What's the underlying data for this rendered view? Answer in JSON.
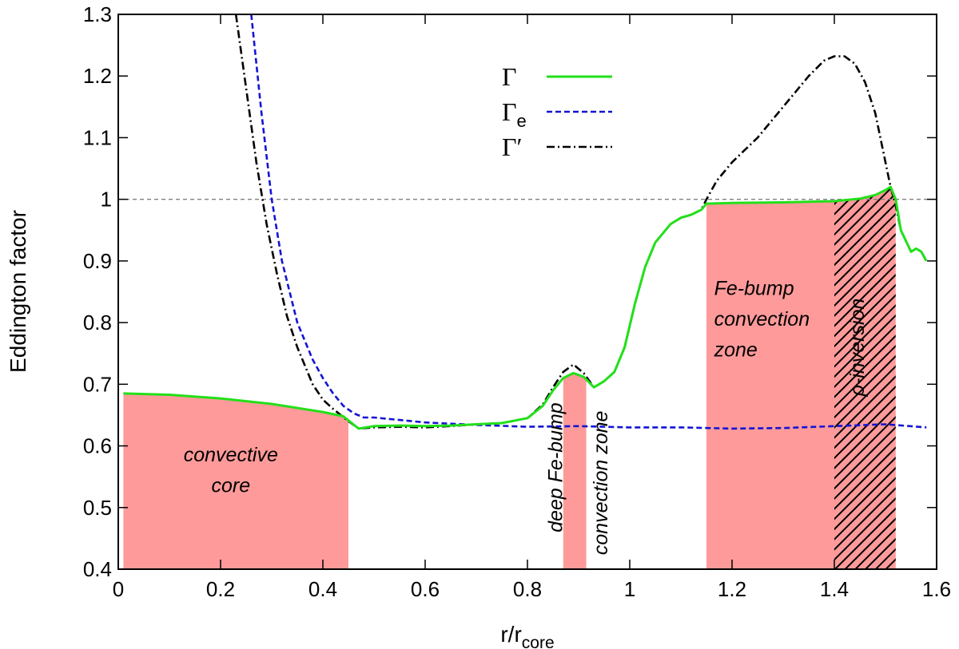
{
  "chart_data": {
    "type": "line",
    "xlabel": {
      "main": "r/r",
      "sub": "core"
    },
    "ylabel": "Eddington factor",
    "xlim": [
      0,
      1.6
    ],
    "ylim": [
      0.4,
      1.3
    ],
    "xticks": [
      "0",
      "0.2",
      "0.4",
      "0.6",
      "0.8",
      "1",
      "1.2",
      "1.4",
      "1.6"
    ],
    "yticks": [
      "0.4",
      "0.5",
      "0.6",
      "0.7",
      "0.8",
      "0.9",
      "1",
      "1.1",
      "1.2",
      "1.3"
    ],
    "reference_line": {
      "y": 1.0,
      "style": "dashed",
      "color": "#808080"
    },
    "legend": {
      "position": "top-center"
    },
    "series": [
      {
        "name": "Γ",
        "legend": {
          "main": "Γ",
          "sub": ""
        },
        "color": "#22e01a",
        "dash": "solid",
        "x": [
          0.01,
          0.1,
          0.2,
          0.3,
          0.4,
          0.44,
          0.47,
          0.5,
          0.55,
          0.6,
          0.65,
          0.7,
          0.75,
          0.8,
          0.83,
          0.85,
          0.87,
          0.89,
          0.91,
          0.93,
          0.95,
          0.97,
          0.99,
          1.01,
          1.03,
          1.05,
          1.08,
          1.1,
          1.12,
          1.14,
          1.15,
          1.2,
          1.3,
          1.4,
          1.45,
          1.48,
          1.5,
          1.51,
          1.52,
          1.53,
          1.55,
          1.56,
          1.57,
          1.58
        ],
        "y": [
          0.685,
          0.683,
          0.677,
          0.668,
          0.655,
          0.648,
          0.628,
          0.632,
          0.633,
          0.632,
          0.633,
          0.635,
          0.637,
          0.645,
          0.665,
          0.69,
          0.71,
          0.718,
          0.712,
          0.695,
          0.705,
          0.72,
          0.76,
          0.83,
          0.89,
          0.93,
          0.96,
          0.97,
          0.975,
          0.983,
          0.993,
          0.994,
          0.995,
          0.997,
          1.001,
          1.007,
          1.015,
          1.02,
          1.0,
          0.95,
          0.915,
          0.92,
          0.915,
          0.9
        ]
      },
      {
        "name": "Γe",
        "legend": {
          "main": "Γ",
          "sub": "e"
        },
        "color": "#1414d4",
        "dash": "dashed",
        "x": [
          0.26,
          0.27,
          0.28,
          0.3,
          0.32,
          0.35,
          0.38,
          0.4,
          0.42,
          0.44,
          0.46,
          0.48,
          0.5,
          0.55,
          0.6,
          0.7,
          0.8,
          0.9,
          1.0,
          1.1,
          1.2,
          1.3,
          1.4,
          1.5,
          1.58
        ],
        "y": [
          1.3,
          1.22,
          1.14,
          1.0,
          0.9,
          0.8,
          0.74,
          0.71,
          0.685,
          0.665,
          0.653,
          0.646,
          0.646,
          0.642,
          0.638,
          0.634,
          0.631,
          0.632,
          0.63,
          0.63,
          0.628,
          0.629,
          0.632,
          0.635,
          0.63
        ]
      },
      {
        "name": "Γ′",
        "legend": {
          "main": "Γ′",
          "sub": ""
        },
        "color": "#000000",
        "dash": "dashdot",
        "x": [
          0.23,
          0.25,
          0.27,
          0.29,
          0.31,
          0.33,
          0.35,
          0.38,
          0.4,
          0.42,
          0.45,
          0.47,
          0.5,
          0.55,
          0.6,
          0.65,
          0.7,
          0.75,
          0.8,
          0.83,
          0.85,
          0.87,
          0.89,
          0.91,
          0.93,
          0.95,
          0.97,
          0.99,
          1.01,
          1.03,
          1.05,
          1.08,
          1.1,
          1.12,
          1.14,
          1.15,
          1.17,
          1.2,
          1.25,
          1.3,
          1.35,
          1.38,
          1.4,
          1.42,
          1.44,
          1.46,
          1.48,
          1.5,
          1.51,
          1.52,
          1.53,
          1.55,
          1.56,
          1.57,
          1.58
        ],
        "y": [
          1.3,
          1.18,
          1.06,
          0.96,
          0.88,
          0.81,
          0.76,
          0.7,
          0.675,
          0.66,
          0.64,
          0.628,
          0.63,
          0.631,
          0.63,
          0.632,
          0.635,
          0.637,
          0.645,
          0.667,
          0.695,
          0.72,
          0.732,
          0.718,
          0.695,
          0.705,
          0.72,
          0.76,
          0.83,
          0.89,
          0.93,
          0.96,
          0.97,
          0.975,
          0.983,
          1.0,
          1.03,
          1.06,
          1.1,
          1.15,
          1.2,
          1.225,
          1.232,
          1.232,
          1.22,
          1.19,
          1.14,
          1.06,
          1.02,
          0.99,
          0.95,
          0.915,
          0.92,
          0.915,
          0.9
        ]
      }
    ],
    "regions": [
      {
        "x0": 0.01,
        "x1": 0.45,
        "follows": "Γ",
        "fill": "#ff9a9a",
        "hatched": false
      },
      {
        "x0": 0.87,
        "x1": 0.915,
        "follows": "Γ",
        "fill": "#ff9a9a",
        "hatched": false
      },
      {
        "x0": 1.15,
        "x1": 1.4,
        "follows": "Γ",
        "fill": "#ff9a9a",
        "hatched": false
      },
      {
        "x0": 1.4,
        "x1": 1.52,
        "follows": "Γ",
        "fill": "#ff9a9a",
        "hatched": true
      }
    ],
    "annotations": [
      {
        "text": "convective",
        "x": 0.22,
        "y": 0.575,
        "rotate": 0,
        "anchor": "middle"
      },
      {
        "text": "core",
        "x": 0.22,
        "y": 0.525,
        "rotate": 0,
        "anchor": "middle"
      },
      {
        "text": "deep Fe-bump",
        "x": 0.868,
        "y": 0.565,
        "rotate": -90,
        "anchor": "middle"
      },
      {
        "text": "convection zone",
        "x": 0.956,
        "y": 0.54,
        "rotate": -90,
        "anchor": "middle"
      },
      {
        "text": "Fe-bump",
        "x": 1.165,
        "y": 0.845,
        "rotate": 0,
        "anchor": "start"
      },
      {
        "text": "convection",
        "x": 1.165,
        "y": 0.795,
        "rotate": 0,
        "anchor": "start"
      },
      {
        "text": "zone",
        "x": 1.165,
        "y": 0.745,
        "rotate": 0,
        "anchor": "start"
      },
      {
        "text": "ρ-inversion",
        "x": 1.458,
        "y": 0.76,
        "rotate": -90,
        "anchor": "middle"
      }
    ]
  }
}
